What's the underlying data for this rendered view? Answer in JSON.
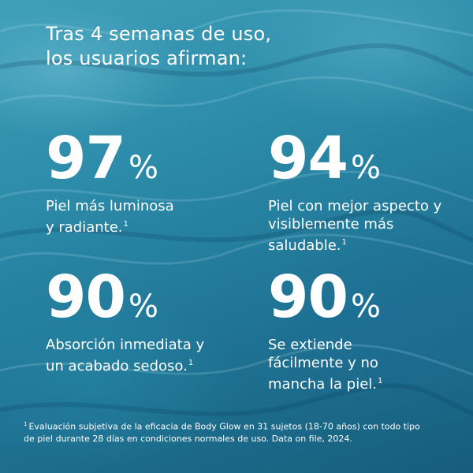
{
  "headline": {
    "line1": "Tras 4 semanas de uso,",
    "line2": "los usuarios afirman:"
  },
  "stats": [
    {
      "value": "97",
      "symbol": "%",
      "lines": [
        "Piel más luminosa",
        "y radiante."
      ],
      "ref": "1"
    },
    {
      "value": "94",
      "symbol": "%",
      "lines": [
        "Piel con mejor aspecto y",
        "visiblemente más",
        "saludable."
      ],
      "ref": "1"
    },
    {
      "value": "90",
      "symbol": "%",
      "lines": [
        "Absorción inmediata y",
        "un acabado sedoso."
      ],
      "ref": "1"
    },
    {
      "value": "90",
      "symbol": "%",
      "lines": [
        "Se extiende",
        "fácilmente y no",
        "mancha la piel."
      ],
      "ref": "1"
    }
  ],
  "footnote": {
    "ref": "1",
    "line1": "Evaluación subjetiva de la eficacia de Body Glow en 31 sujetos (18-70 años) con todo tipo",
    "line2": "de piel durante 28 días en condiciones normales de uso.  Data on file, 2024."
  },
  "colors": {
    "text": "#ffffff",
    "water_light": "#3f9fb9",
    "water_dark": "#175d7c"
  }
}
